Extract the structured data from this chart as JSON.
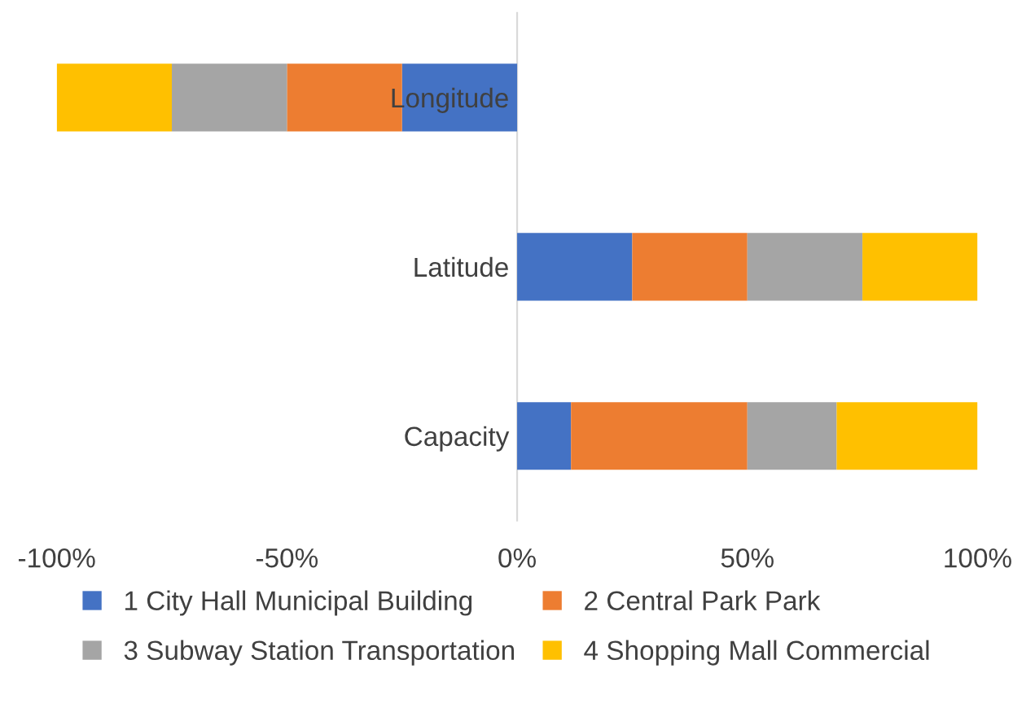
{
  "chart_data": {
    "type": "bar",
    "orientation": "horizontal",
    "stacked": true,
    "categories": [
      "Longitude",
      "Latitude",
      "Capacity"
    ],
    "series": [
      {
        "name": "1 City Hall Municipal Building",
        "color": "#4472c4",
        "values": [
          -25,
          25,
          11.7
        ]
      },
      {
        "name": "2 Central Park Park",
        "color": "#ed7d31",
        "values": [
          -25,
          25,
          38.3
        ]
      },
      {
        "name": "3 Subway Station Transportation",
        "color": "#a5a5a5",
        "values": [
          -25,
          25,
          19.4
        ]
      },
      {
        "name": "4 Shopping Mall Commercial",
        "color": "#ffc000",
        "values": [
          -25,
          25,
          30.6
        ]
      }
    ],
    "xlim": [
      -100,
      100
    ],
    "xticks": [
      {
        "value": -100,
        "label": "-100%"
      },
      {
        "value": -50,
        "label": "-50%"
      },
      {
        "value": 0,
        "label": "0%"
      },
      {
        "value": 50,
        "label": "50%"
      },
      {
        "value": 100,
        "label": "100%"
      }
    ],
    "grid": false,
    "legend": "bottom"
  }
}
